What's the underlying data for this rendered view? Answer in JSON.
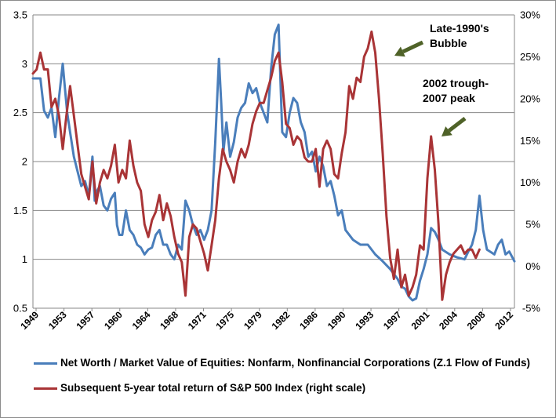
{
  "chart_data": {
    "type": "line",
    "title": "",
    "xlabel": "",
    "ylabel": "",
    "left_axis": {
      "min": 0.5,
      "max": 3.5,
      "ticks": [
        "0.5",
        "1",
        "1.5",
        "2",
        "2.5",
        "3",
        "3.5"
      ]
    },
    "right_axis": {
      "min": -5,
      "max": 30,
      "ticks": [
        "-5%",
        "0%",
        "5%",
        "10%",
        "15%",
        "20%",
        "25%",
        "30%"
      ]
    },
    "x_tick_labels": [
      "1949",
      "1953",
      "1957",
      "1960",
      "1964",
      "1968",
      "1971",
      "1975",
      "1979",
      "1982",
      "1986",
      "1990",
      "1993",
      "1997",
      "2001",
      "2004",
      "2008",
      "2012"
    ],
    "x_range": [
      1949,
      2013.7
    ],
    "grid": "horizontal",
    "legend_position": "bottom",
    "series": [
      {
        "name": "Net Worth / Market Value of Equities: Nonfarm, Nonfinancial Corporations (Z.1 Flow of Funds)",
        "axis": "left",
        "color": "#4a7ebb",
        "x": [
          1949,
          1950,
          1950.5,
          1951,
          1951.5,
          1952,
          1952.5,
          1953,
          1953.3,
          1953.6,
          1954,
          1954.5,
          1955,
          1955.5,
          1956,
          1956.5,
          1957,
          1957.3,
          1957.6,
          1958,
          1958.5,
          1959,
          1959.5,
          1960,
          1960.3,
          1960.6,
          1961,
          1961.5,
          1962,
          1962.5,
          1963,
          1963.5,
          1964,
          1964.5,
          1965,
          1965.5,
          1966,
          1966.5,
          1967,
          1967.5,
          1968,
          1968.5,
          1969,
          1969.5,
          1970,
          1970.5,
          1971,
          1971.5,
          1972,
          1972.5,
          1973,
          1973.5,
          1974,
          1974.3,
          1974.6,
          1975,
          1975.5,
          1976,
          1976.5,
          1977,
          1977.5,
          1978,
          1978.5,
          1979,
          1979.5,
          1980,
          1980.5,
          1981,
          1981.5,
          1982,
          1982.5,
          1983,
          1983.5,
          1984,
          1984.5,
          1985,
          1985.5,
          1986,
          1986.5,
          1987,
          1987.5,
          1988,
          1988.5,
          1989,
          1989.5,
          1990,
          1990.5,
          1991,
          1992,
          1993,
          1994,
          1995,
          1996,
          1997,
          1998,
          1998.5,
          1999,
          1999.5,
          2000,
          2000.5,
          2001,
          2001.5,
          2002,
          2002.5,
          2003,
          2003.5,
          2004,
          2005,
          2006,
          2007,
          2007.5,
          2008,
          2008.5,
          2009,
          2009.5,
          2010,
          2011,
          2011.5,
          2012,
          2012.5,
          2013,
          2013.7
        ],
        "values": [
          2.85,
          2.85,
          2.52,
          2.45,
          2.55,
          2.25,
          2.65,
          3.0,
          2.75,
          2.5,
          2.3,
          2.05,
          1.9,
          1.75,
          1.8,
          1.65,
          2.05,
          1.6,
          1.7,
          1.75,
          1.55,
          1.5,
          1.62,
          1.68,
          1.35,
          1.25,
          1.25,
          1.5,
          1.3,
          1.25,
          1.15,
          1.12,
          1.05,
          1.1,
          1.12,
          1.25,
          1.3,
          1.15,
          1.15,
          1.05,
          1.0,
          1.15,
          1.1,
          1.6,
          1.5,
          1.35,
          1.25,
          1.3,
          1.2,
          1.3,
          1.5,
          2.2,
          3.05,
          2.6,
          2.1,
          2.4,
          2.05,
          2.2,
          2.45,
          2.55,
          2.6,
          2.8,
          2.7,
          2.75,
          2.6,
          2.5,
          2.4,
          2.95,
          3.3,
          3.4,
          2.3,
          2.25,
          2.5,
          2.65,
          2.6,
          2.4,
          2.3,
          2.05,
          2.1,
          1.9,
          2.05,
          1.95,
          1.75,
          1.8,
          1.65,
          1.45,
          1.5,
          1.3,
          1.2,
          1.15,
          1.15,
          1.05,
          0.98,
          0.9,
          0.8,
          0.72,
          0.7,
          0.62,
          0.58,
          0.6,
          0.78,
          0.9,
          1.05,
          1.32,
          1.28,
          1.2,
          1.1,
          1.05,
          1.02,
          1.0,
          1.08,
          1.15,
          1.3,
          1.65,
          1.3,
          1.1,
          1.05,
          1.15,
          1.2,
          1.05,
          1.08,
          0.98
        ]
      },
      {
        "name": "Subsequent 5-year total return of S&P 500 Index (right scale)",
        "axis": "right",
        "color": "#a93436",
        "x": [
          1949,
          1949.5,
          1950,
          1950.5,
          1951,
          1951.5,
          1952,
          1952.5,
          1953,
          1953.5,
          1954,
          1954.5,
          1955,
          1955.5,
          1956,
          1956.5,
          1957,
          1957.5,
          1958,
          1958.5,
          1959,
          1959.5,
          1960,
          1960.5,
          1961,
          1961.5,
          1962,
          1962.5,
          1963,
          1963.5,
          1964,
          1964.5,
          1965,
          1965.5,
          1966,
          1966.5,
          1967,
          1967.5,
          1968,
          1968.5,
          1969,
          1969.5,
          1970,
          1970.5,
          1971,
          1971.5,
          1972,
          1972.5,
          1973,
          1973.5,
          1974,
          1974.5,
          1975,
          1975.5,
          1976,
          1976.5,
          1977,
          1977.5,
          1978,
          1978.5,
          1979,
          1979.5,
          1980,
          1980.5,
          1981,
          1981.5,
          1982,
          1982.5,
          1983,
          1983.5,
          1984,
          1984.5,
          1985,
          1985.5,
          1986,
          1986.5,
          1987,
          1987.5,
          1988,
          1988.5,
          1989,
          1989.5,
          1990,
          1990.5,
          1991,
          1991.5,
          1992,
          1992.5,
          1993,
          1993.5,
          1994,
          1994.5,
          1995,
          1995.5,
          1996,
          1996.5,
          1997,
          1997.5,
          1998,
          1998.5,
          1999,
          1999.5,
          2000,
          2000.5,
          2001,
          2001.5,
          2002,
          2002.5,
          2003,
          2003.5,
          2004,
          2004.5,
          2005,
          2005.5,
          2006,
          2006.5,
          2007,
          2007.5,
          2008,
          2008.5,
          2009
        ],
        "values": [
          23,
          23.5,
          25.5,
          23.5,
          23.5,
          19,
          20,
          18,
          14,
          18,
          21.5,
          18,
          14.5,
          11,
          9.5,
          8,
          12.5,
          7.5,
          10,
          11.5,
          10.5,
          12,
          14.5,
          10,
          11.5,
          10.5,
          15,
          12,
          10,
          9,
          5,
          3.5,
          5.5,
          6.5,
          8.5,
          5.5,
          7.5,
          6,
          3.5,
          1.5,
          0.5,
          -3.5,
          3.5,
          5,
          4.5,
          3,
          1.5,
          -0.5,
          2.5,
          5.5,
          10.5,
          14,
          12.5,
          11.5,
          10,
          12.5,
          14,
          13,
          14.5,
          17,
          18.5,
          19.5,
          19.5,
          21,
          22.5,
          24.5,
          25.5,
          22,
          17,
          16.5,
          14.5,
          15.5,
          15,
          13,
          12.5,
          12.5,
          14,
          9.5,
          14,
          15,
          14,
          11,
          10.5,
          13.5,
          16,
          21.5,
          20,
          22.5,
          22,
          25,
          26,
          28,
          25.5,
          20,
          13.5,
          6,
          1,
          -1.5,
          2,
          -2.5,
          -1,
          -3.5,
          -2.5,
          -1,
          2.5,
          2,
          10.5,
          15.5,
          11.5,
          5,
          -4,
          -1,
          0.5,
          1.5,
          2,
          2.5,
          1.5,
          2,
          2,
          1,
          2
        ]
      }
    ],
    "annotations": [
      {
        "lines": [
          "Late-1990's",
          "Bubble"
        ],
        "points_to_year": 1995.0
      },
      {
        "lines": [
          "2002 trough-",
          "2007 peak"
        ],
        "points_to_year": 2002.5
      }
    ],
    "arrow_color": "#4f6228"
  }
}
